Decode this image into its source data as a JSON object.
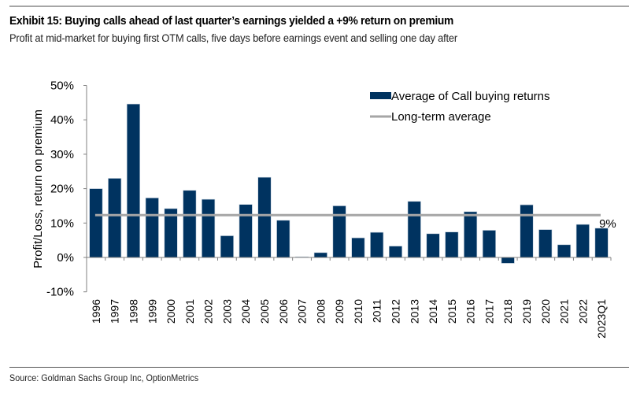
{
  "header": {
    "title": "Exhibit 15: Buying calls ahead of last quarter’s earnings yielded a +9% return on premium",
    "subtitle": "Profit at mid-market for buying first OTM calls, five days before earnings event and selling one day after"
  },
  "footer": {
    "source": "Source: Goldman Sachs Group Inc, OptionMetrics"
  },
  "colors": {
    "bar": "#003360",
    "average_line": "#a6a6a6",
    "axis": "#808080"
  },
  "chart_data": {
    "type": "bar",
    "title": "Exhibit 15: Buying calls ahead of last quarter’s earnings yielded a +9% return on premium",
    "subtitle": "Profit at mid-market for buying first OTM calls, five days before earnings event and selling one day after",
    "xlabel": "",
    "ylabel": "Profit/Loss, return on premium",
    "ylim": [
      -10,
      50
    ],
    "yticks": [
      -10,
      0,
      10,
      20,
      30,
      40,
      50
    ],
    "ytick_labels": [
      "-10%",
      "0%",
      "10%",
      "20%",
      "30%",
      "40%",
      "50%"
    ],
    "grid": false,
    "legend_position": "top-right",
    "categories": [
      "1996",
      "1997",
      "1998",
      "1999",
      "2000",
      "2001",
      "2002",
      "2003",
      "2004",
      "2005",
      "2006",
      "2007",
      "2008",
      "2009",
      "2010",
      "2011",
      "2012",
      "2013",
      "2014",
      "2015",
      "2016",
      "2017",
      "2018",
      "2019",
      "2020",
      "2021",
      "2022",
      "2023Q1"
    ],
    "series": [
      {
        "name": "Average of Call buying returns",
        "type": "bar",
        "values": [
          20.0,
          23.0,
          44.6,
          17.3,
          14.2,
          19.5,
          16.9,
          6.3,
          15.4,
          23.3,
          10.8,
          0.2,
          1.4,
          15.0,
          5.7,
          7.3,
          3.3,
          16.3,
          6.9,
          7.4,
          13.3,
          7.9,
          -1.7,
          15.3,
          8.1,
          3.7,
          9.6,
          8.5
        ]
      },
      {
        "name": "Long-term average",
        "type": "line",
        "value": 12.3
      }
    ],
    "annotations": [
      {
        "text": "9%",
        "target": "2023Q1"
      }
    ]
  }
}
